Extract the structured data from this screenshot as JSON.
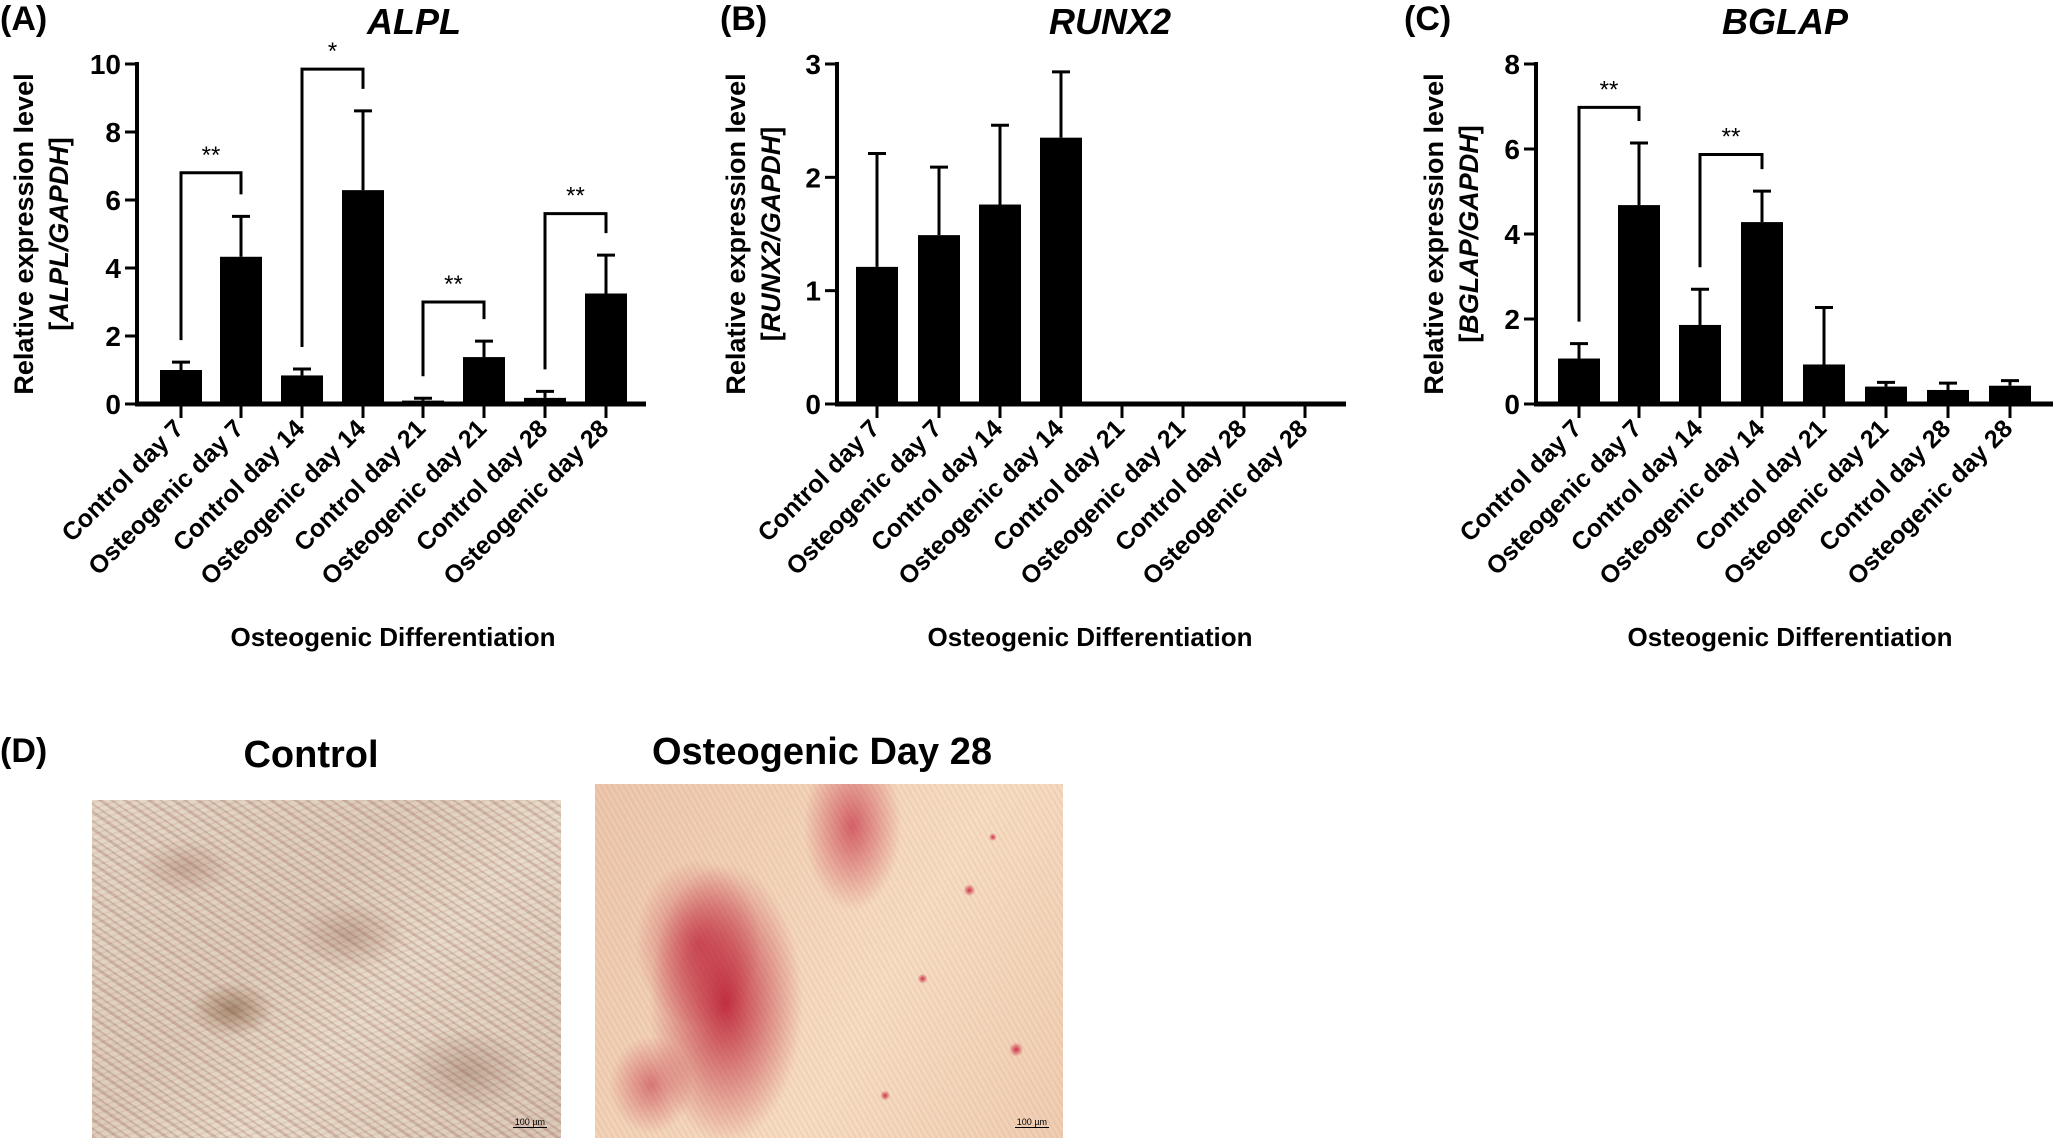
{
  "figure": {
    "panel_letters": {
      "a": "(A)",
      "b": "(B)",
      "c": "(C)",
      "d": "(D)"
    },
    "x_axis_title": "Osteogenic Differentiation",
    "y_axis_line1": "Relative expression level",
    "significance_levels": {
      "single": "*",
      "double": "**"
    }
  },
  "chart_data": [
    {
      "panel": "A",
      "type": "bar",
      "title": "ALPL",
      "xlabel": "Osteogenic Differentiation",
      "ylabel": "Relative expression level [ALPL/GAPDH]",
      "ylabel_gene": "ALPL",
      "ylim": [
        0,
        10
      ],
      "yticks": [
        0,
        2,
        4,
        6,
        8,
        10
      ],
      "categories": [
        "Control day 7",
        "Osteogenic day 7",
        "Control day 14",
        "Osteogenic day 14",
        "Control day 21",
        "Osteogenic day 21",
        "Control day 28",
        "Osteogenic day 28"
      ],
      "values": [
        1.0,
        4.33,
        0.84,
        6.29,
        0.1,
        1.38,
        0.18,
        3.25
      ],
      "error_upper": [
        1.23,
        5.52,
        1.03,
        8.62,
        0.17,
        1.85,
        0.37,
        4.38
      ],
      "significance": [
        {
          "from": 0,
          "to": 1,
          "label": "**",
          "y": 6.8
        },
        {
          "from": 2,
          "to": 3,
          "label": "*",
          "y": 9.85
        },
        {
          "from": 4,
          "to": 5,
          "label": "**",
          "y": 3.0
        },
        {
          "from": 6,
          "to": 7,
          "label": "**",
          "y": 5.6
        }
      ],
      "grid": false,
      "legend": null
    },
    {
      "panel": "B",
      "type": "bar",
      "title": "RUNX2",
      "xlabel": "Osteogenic Differentiation",
      "ylabel": "Relative expression level [RUNX2/GAPDH]",
      "ylabel_gene": "RUNX2",
      "ylim": [
        0,
        3
      ],
      "yticks": [
        0,
        1,
        2,
        3
      ],
      "categories": [
        "Control day 7",
        "Osteogenic day 7",
        "Control day 14",
        "Osteogenic day 14",
        "Control day 21",
        "Osteogenic day 21",
        "Control day 28",
        "Osteogenic day 28"
      ],
      "values": [
        1.21,
        1.49,
        1.76,
        2.35,
        0,
        0,
        0,
        0
      ],
      "error_upper": [
        2.21,
        2.09,
        2.46,
        2.93,
        0,
        0,
        0,
        0
      ],
      "significance": [],
      "grid": false,
      "legend": null
    },
    {
      "panel": "C",
      "type": "bar",
      "title": "BGLAP",
      "xlabel": "Osteogenic Differentiation",
      "ylabel": "Relative expression level [BGLAP/GAPDH]",
      "ylabel_gene": "BGLAP",
      "ylim": [
        0,
        8
      ],
      "yticks": [
        0,
        2,
        4,
        6,
        8
      ],
      "categories": [
        "Control day 7",
        "Osteogenic day 7",
        "Control day 14",
        "Osteogenic day 14",
        "Control day 21",
        "Osteogenic day 21",
        "Control day 28",
        "Osteogenic day 28"
      ],
      "values": [
        1.07,
        4.68,
        1.86,
        4.28,
        0.93,
        0.41,
        0.33,
        0.43
      ],
      "error_upper": [
        1.42,
        6.14,
        2.7,
        5.01,
        2.27,
        0.51,
        0.49,
        0.55
      ],
      "significance": [
        {
          "from": 0,
          "to": 1,
          "label": "**",
          "y": 6.98
        },
        {
          "from": 2,
          "to": 3,
          "label": "**",
          "y": 5.87
        }
      ],
      "grid": false,
      "legend": null
    }
  ],
  "photos": {
    "control": {
      "title": "Control",
      "scale_bar": "100 µm"
    },
    "osteogenic": {
      "title": "Osteogenic Day 28",
      "scale_bar": "100 µm"
    }
  },
  "colors": {
    "bar": "#000000",
    "axis": "#000000",
    "background": "#ffffff"
  }
}
